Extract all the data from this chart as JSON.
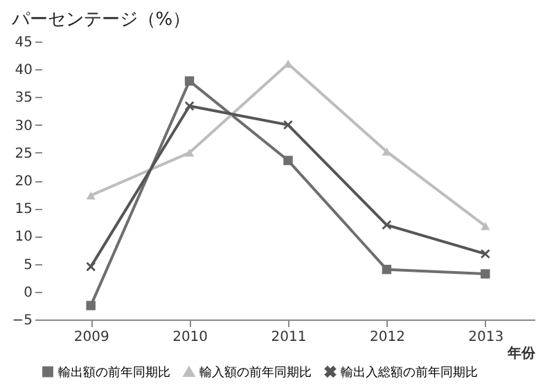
{
  "chart_data": {
    "type": "line",
    "ylabel": "パーセンテージ（%）",
    "xlabel": "年份",
    "categories": [
      "2009",
      "2010",
      "2011",
      "2012",
      "2013"
    ],
    "series": [
      {
        "name": "輸出額の前年同期比",
        "color": "#6e6e6e",
        "marker": "square",
        "values": [
          -2.5,
          37.9,
          23.6,
          4,
          3.2
        ]
      },
      {
        "name": "輸入額の前年同期比",
        "color": "#bdbdbd",
        "marker": "triangle",
        "values": [
          17.3,
          25,
          41,
          25.2,
          11.8
        ]
      },
      {
        "name": "輸出入総額の前年同期比",
        "color": "#555555",
        "marker": "cross",
        "values": [
          4.5,
          33.4,
          30,
          12,
          6.8
        ]
      }
    ],
    "ylim": [
      -5,
      45
    ],
    "yticks": [
      -5,
      0,
      5,
      10,
      15,
      20,
      25,
      30,
      35,
      40,
      45
    ],
    "grid": false,
    "legend": "bottom"
  }
}
